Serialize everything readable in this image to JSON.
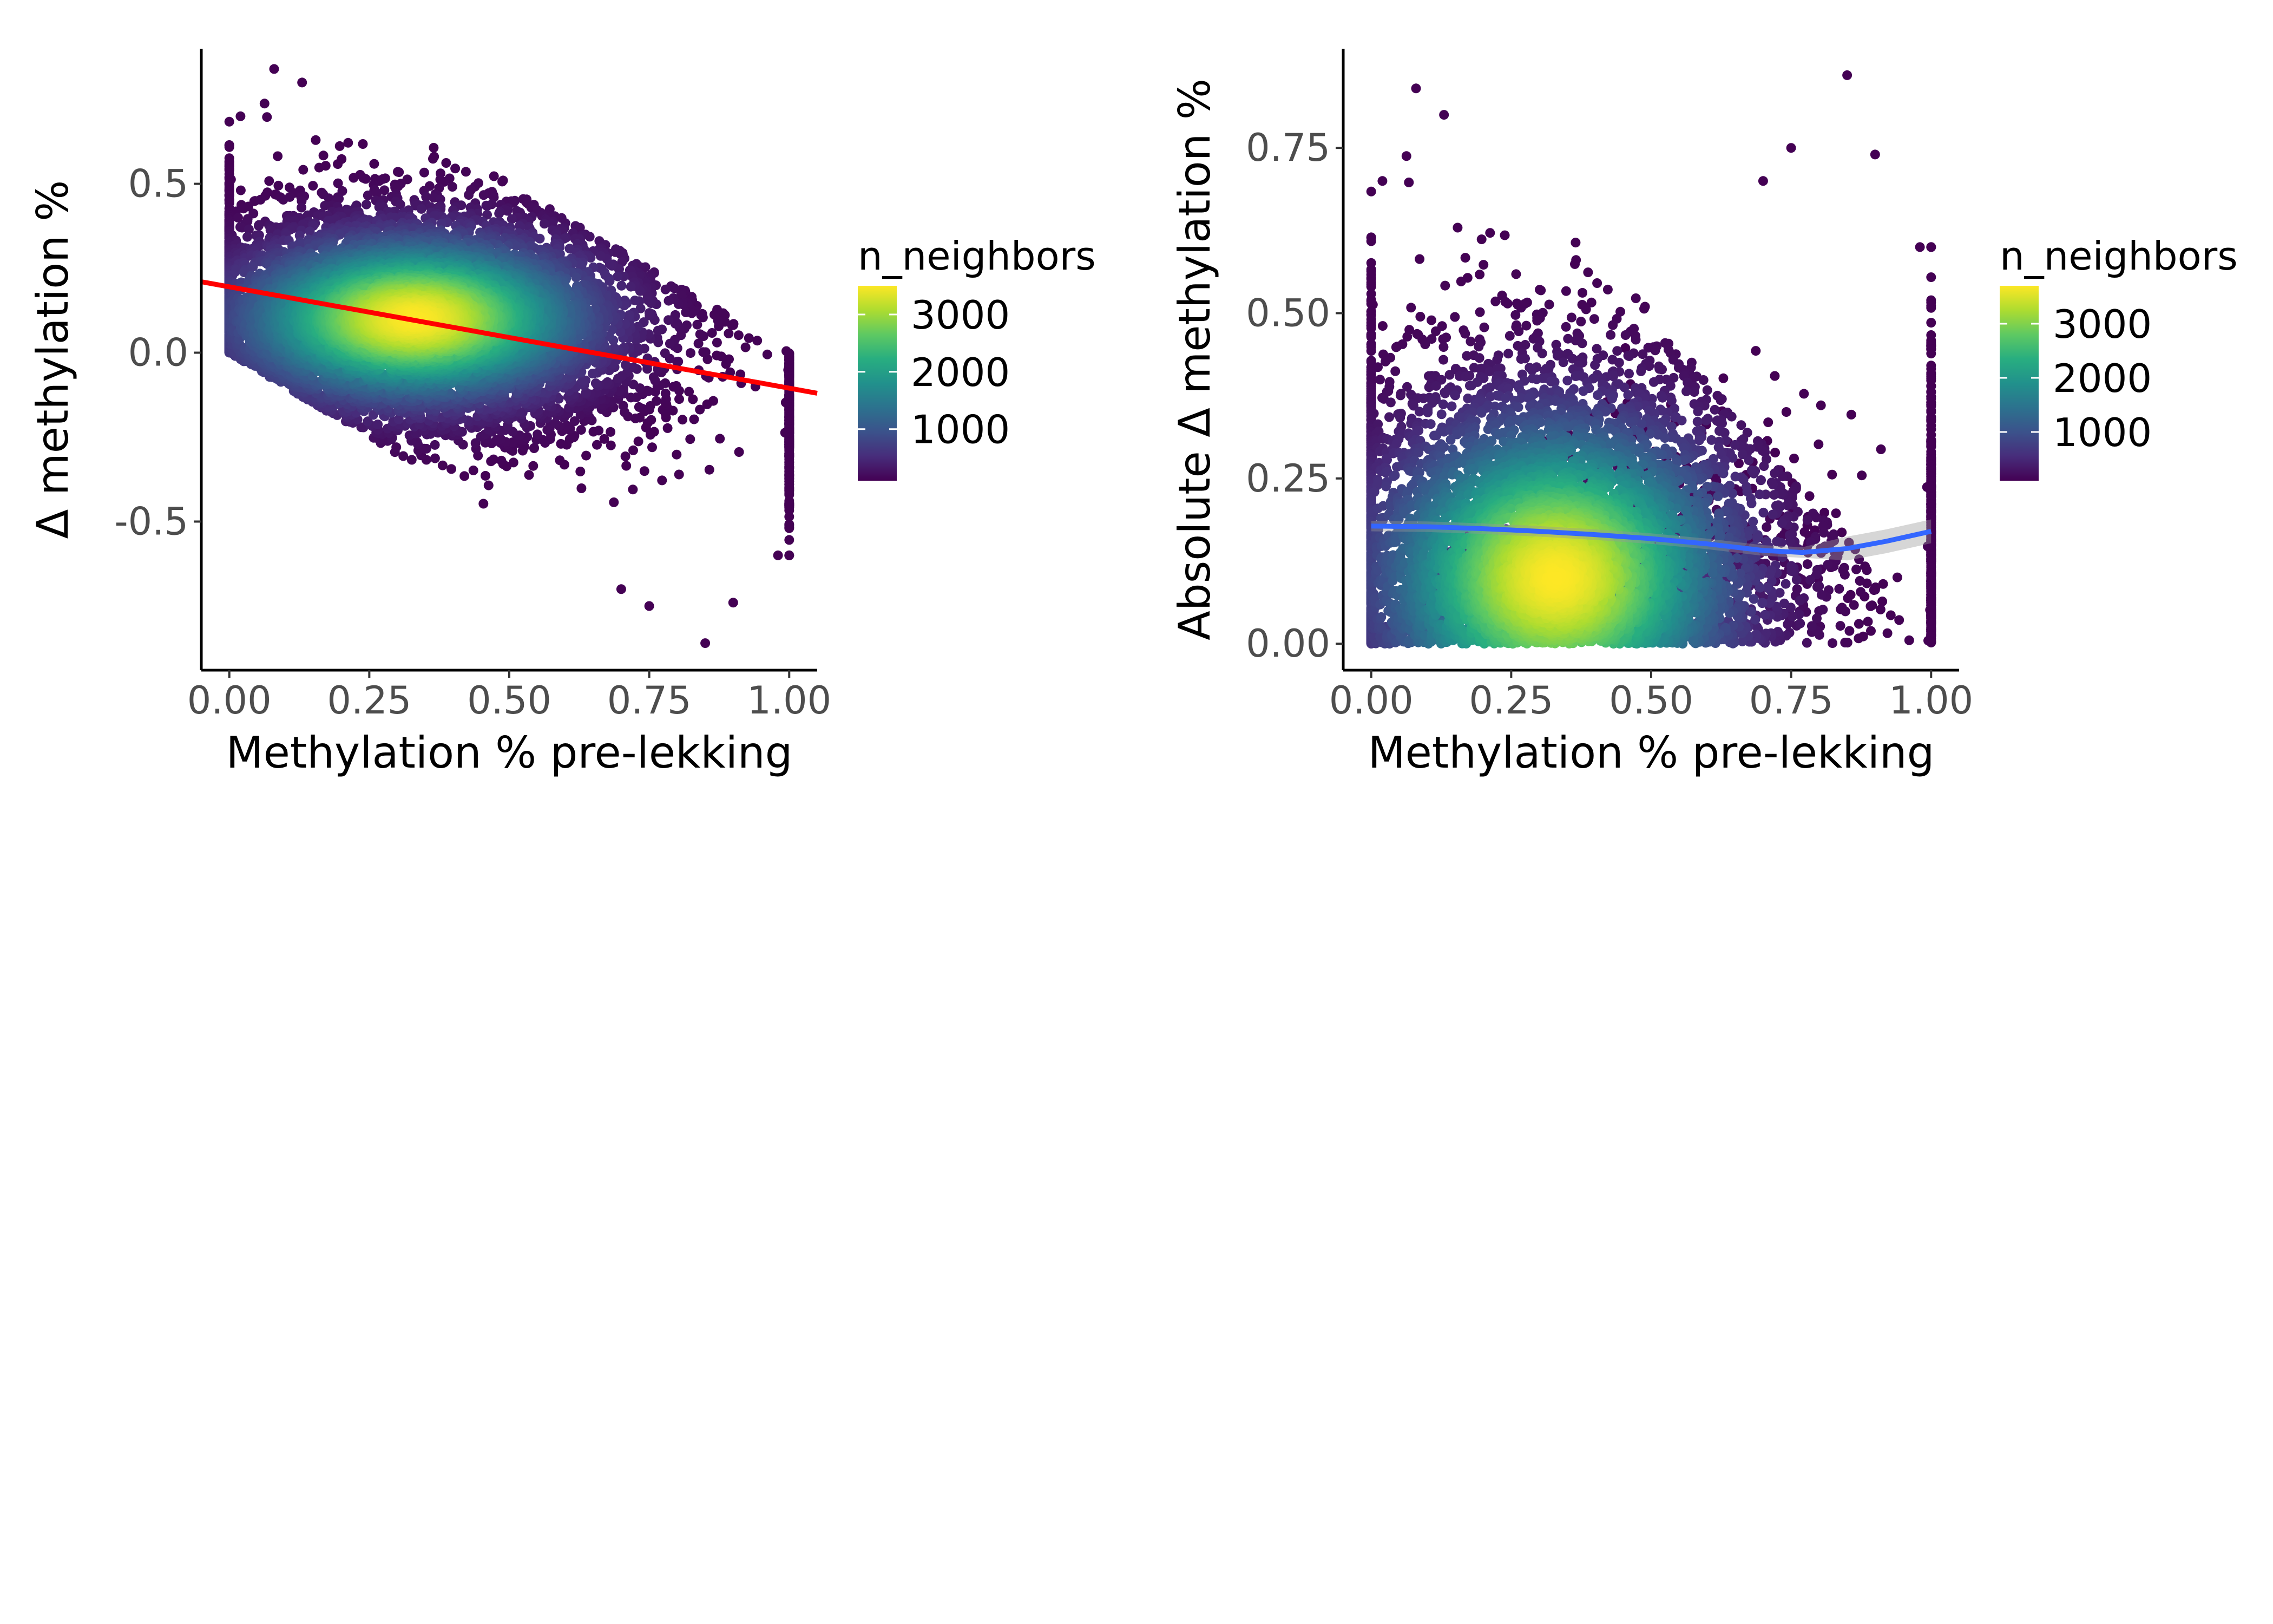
{
  "chart_data": [
    {
      "type": "scatter",
      "xlabel": "Methylation % pre-lekking",
      "ylabel": "Δ methylation %",
      "xlim": [
        -0.05,
        1.05
      ],
      "ylim": [
        -0.94,
        0.9
      ],
      "x_ticks": [
        {
          "value": 0.0,
          "label": "0.00"
        },
        {
          "value": 0.25,
          "label": "0.25"
        },
        {
          "value": 0.5,
          "label": "0.50"
        },
        {
          "value": 0.75,
          "label": "0.75"
        },
        {
          "value": 1.0,
          "label": "1.00"
        }
      ],
      "y_ticks": [
        {
          "value": 0.5,
          "label": "0.5"
        },
        {
          "value": 0.0,
          "label": "0.0"
        },
        {
          "value": -0.5,
          "label": "-0.5"
        }
      ],
      "grid": false,
      "point_cloud": {
        "description_of_shape": "parallelogram band bounded by y=-x and y=1-x",
        "density_center": {
          "x": 0.33,
          "y": 0.1
        },
        "outliers": [
          {
            "x": 0.08,
            "y": 0.84
          },
          {
            "x": 0.13,
            "y": 0.8
          },
          {
            "x": 0.85,
            "y": -0.86
          },
          {
            "x": 0.9,
            "y": -0.74
          },
          {
            "x": 0.7,
            "y": -0.7
          },
          {
            "x": 0.75,
            "y": -0.75
          },
          {
            "x": 0.02,
            "y": 0.7
          },
          {
            "x": 0.98,
            "y": -0.6
          }
        ]
      },
      "fit_line": {
        "method": "linear",
        "color": "#ff0000",
        "points": [
          {
            "x": -0.05,
            "y": 0.21
          },
          {
            "x": 1.05,
            "y": -0.12
          }
        ]
      },
      "legend": {
        "title": "n_neighbors",
        "position": "right",
        "range": [
          100,
          3500
        ],
        "labels": [
          {
            "value": 3000,
            "label": "3000"
          },
          {
            "value": 2000,
            "label": "2000"
          },
          {
            "value": 1000,
            "label": "1000"
          }
        ]
      }
    },
    {
      "type": "scatter",
      "xlabel": "Methylation % pre-lekking",
      "ylabel": "Absolute Δ methylation %",
      "xlim": [
        -0.05,
        1.05
      ],
      "ylim": [
        -0.04,
        0.9
      ],
      "x_ticks": [
        {
          "value": 0.0,
          "label": "0.00"
        },
        {
          "value": 0.25,
          "label": "0.25"
        },
        {
          "value": 0.5,
          "label": "0.50"
        },
        {
          "value": 0.75,
          "label": "0.75"
        },
        {
          "value": 1.0,
          "label": "1.00"
        }
      ],
      "y_ticks": [
        {
          "value": 0.75,
          "label": "0.75"
        },
        {
          "value": 0.5,
          "label": "0.50"
        },
        {
          "value": 0.25,
          "label": "0.25"
        },
        {
          "value": 0.0,
          "label": "0.00"
        }
      ],
      "grid": false,
      "point_cloud": {
        "description_of_shape": "absolute values, dense near bottom",
        "density_center": {
          "x": 0.33,
          "y": 0.12
        },
        "outliers": [
          {
            "x": 0.08,
            "y": 0.84
          },
          {
            "x": 0.13,
            "y": 0.8
          },
          {
            "x": 0.85,
            "y": 0.86
          },
          {
            "x": 0.9,
            "y": 0.74
          },
          {
            "x": 0.7,
            "y": 0.7
          },
          {
            "x": 0.75,
            "y": 0.75
          },
          {
            "x": 0.02,
            "y": 0.7
          },
          {
            "x": 0.98,
            "y": 0.6
          }
        ]
      },
      "fit_line": {
        "method": "smooth",
        "color": "#3366ff",
        "points": [
          {
            "x": 0.0,
            "y": 0.178
          },
          {
            "x": 0.1,
            "y": 0.177
          },
          {
            "x": 0.2,
            "y": 0.174
          },
          {
            "x": 0.3,
            "y": 0.17
          },
          {
            "x": 0.4,
            "y": 0.165
          },
          {
            "x": 0.5,
            "y": 0.159
          },
          {
            "x": 0.6,
            "y": 0.151
          },
          {
            "x": 0.7,
            "y": 0.141
          },
          {
            "x": 0.77,
            "y": 0.138
          },
          {
            "x": 0.85,
            "y": 0.144
          },
          {
            "x": 0.92,
            "y": 0.155
          },
          {
            "x": 1.0,
            "y": 0.17
          }
        ]
      },
      "legend": {
        "title": "n_neighbors",
        "position": "right",
        "range": [
          100,
          3700
        ],
        "labels": [
          {
            "value": 3000,
            "label": "3000"
          },
          {
            "value": 2000,
            "label": "2000"
          },
          {
            "value": 1000,
            "label": "1000"
          }
        ]
      }
    }
  ]
}
